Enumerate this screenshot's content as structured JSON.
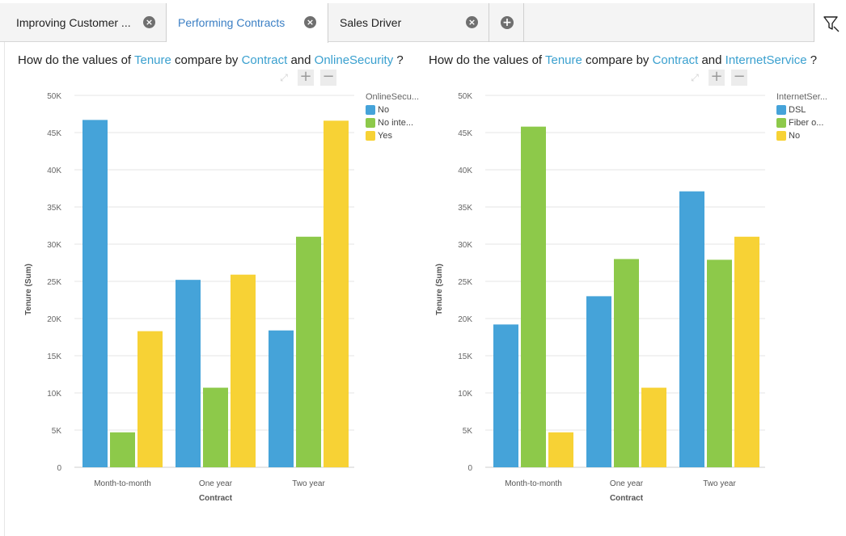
{
  "tabs": [
    {
      "label": "Improving Customer ...",
      "active": false
    },
    {
      "label": "Performing Contracts",
      "active": true
    },
    {
      "label": "Sales Driver",
      "active": false
    }
  ],
  "icons": {
    "close": "close-icon",
    "add": "add-tab-icon",
    "filter": "filter-icon",
    "fit": "fit-to-screen-icon",
    "zoom_in": "zoom-in-icon",
    "zoom_out": "zoom-out-icon"
  },
  "colors": {
    "series1": "#45a3d9",
    "series2": "#8dc94a",
    "series3": "#f7d235",
    "keyword": "#3aa0cf",
    "active_tab": "#3b7fc4"
  },
  "questions": [
    {
      "prefix": "How do the values of",
      "measure": "Tenure",
      "mid": "compare by",
      "dim1": "Contract",
      "and": "and",
      "dim2": "OnlineSecurity",
      "suffix": "?"
    },
    {
      "prefix": "How do the values of",
      "measure": "Tenure",
      "mid": "compare by",
      "dim1": "Contract",
      "and": "and",
      "dim2": "InternetService",
      "suffix": "?"
    }
  ],
  "zoom": {
    "fit": "⤢",
    "in": "+",
    "out": "−"
  },
  "chart_data": [
    {
      "type": "bar",
      "categories": [
        "Month-to-month",
        "One year",
        "Two year"
      ],
      "xlabel": "Contract",
      "ylabel": "Tenure (Sum)",
      "ylim": [
        0,
        50000
      ],
      "yticks": [
        "0",
        "5K",
        "10K",
        "15K",
        "20K",
        "25K",
        "30K",
        "35K",
        "40K",
        "45K",
        "50K"
      ],
      "legend_title": "OnlineSecu...",
      "legend_position": "top-right",
      "grid": true,
      "series": [
        {
          "name": "No",
          "values": [
            46700,
            25200,
            18400
          ]
        },
        {
          "name": "No inte...",
          "values": [
            4700,
            10700,
            31000
          ]
        },
        {
          "name": "Yes",
          "values": [
            18300,
            25900,
            46600
          ]
        }
      ]
    },
    {
      "type": "bar",
      "categories": [
        "Month-to-month",
        "One year",
        "Two year"
      ],
      "xlabel": "Contract",
      "ylabel": "Tenure (Sum)",
      "ylim": [
        0,
        50000
      ],
      "yticks": [
        "0",
        "5K",
        "10K",
        "15K",
        "20K",
        "25K",
        "30K",
        "35K",
        "40K",
        "45K",
        "50K"
      ],
      "legend_title": "InternetSer...",
      "legend_position": "top-right",
      "grid": true,
      "series": [
        {
          "name": "DSL",
          "values": [
            19200,
            23000,
            37100
          ]
        },
        {
          "name": "Fiber o...",
          "values": [
            45800,
            28000,
            27900
          ]
        },
        {
          "name": "No",
          "values": [
            4700,
            10700,
            31000
          ]
        }
      ]
    }
  ]
}
